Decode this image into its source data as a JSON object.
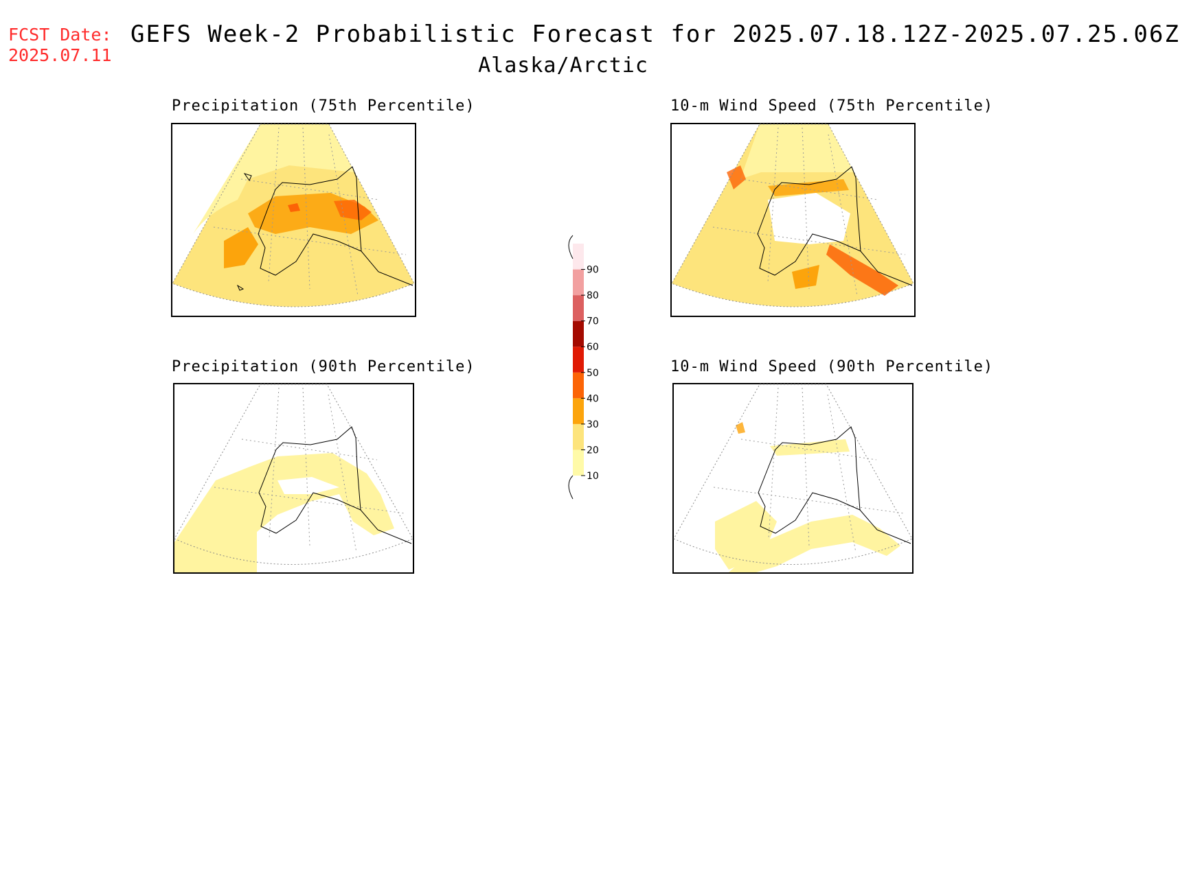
{
  "header": {
    "fcst_label": "FCST Date:",
    "fcst_date": "2025.07.11",
    "title": "GEFS Week-2 Probabilistic Forecast for 2025.07.18.12Z-2025.07.25.06Z",
    "subtitle": "Alaska/Arctic"
  },
  "panels": [
    {
      "title": "Precipitation (75th Percentile)"
    },
    {
      "title": "10-m Wind Speed (75th Percentile)"
    },
    {
      "title": "Precipitation (90th Percentile)"
    },
    {
      "title": "10-m Wind Speed (90th Percentile)"
    }
  ],
  "colorbar": {
    "levels": [
      "10",
      "20",
      "30",
      "40",
      "50",
      "60",
      "70",
      "80",
      "90"
    ],
    "colors": [
      "#fffaa8",
      "#fde47c",
      "#fca40c",
      "#fc6406",
      "#e01a04",
      "#a40a00",
      "#dc6060",
      "#f2a0a0",
      "#fde8ec"
    ]
  }
}
